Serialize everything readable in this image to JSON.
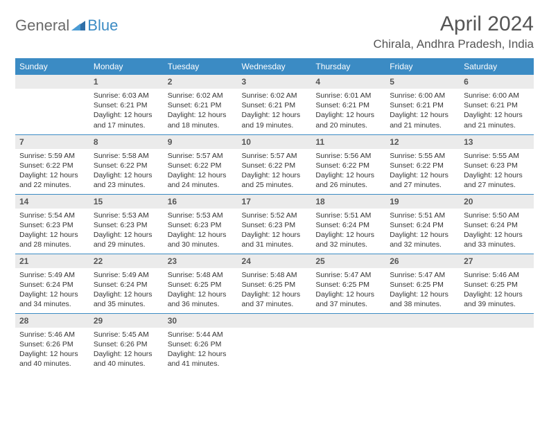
{
  "brand": {
    "text1": "General",
    "text2": "Blue"
  },
  "title": "April 2024",
  "location": "Chirala, Andhra Pradesh, India",
  "colors": {
    "header_bg": "#3b8bc4",
    "header_text": "#ffffff",
    "daynum_bg": "#ebebeb",
    "row_border": "#3b8bc4",
    "title_color": "#555555",
    "body_text": "#333333"
  },
  "typography": {
    "title_fontsize": 30,
    "location_fontsize": 17,
    "weekday_fontsize": 12,
    "daynum_fontsize": 12,
    "body_fontsize": 10.5
  },
  "weekdays": [
    "Sunday",
    "Monday",
    "Tuesday",
    "Wednesday",
    "Thursday",
    "Friday",
    "Saturday"
  ],
  "weeks": [
    [
      null,
      {
        "n": "1",
        "sr": "6:03 AM",
        "ss": "6:21 PM",
        "dl": "12 hours and 17 minutes."
      },
      {
        "n": "2",
        "sr": "6:02 AM",
        "ss": "6:21 PM",
        "dl": "12 hours and 18 minutes."
      },
      {
        "n": "3",
        "sr": "6:02 AM",
        "ss": "6:21 PM",
        "dl": "12 hours and 19 minutes."
      },
      {
        "n": "4",
        "sr": "6:01 AM",
        "ss": "6:21 PM",
        "dl": "12 hours and 20 minutes."
      },
      {
        "n": "5",
        "sr": "6:00 AM",
        "ss": "6:21 PM",
        "dl": "12 hours and 21 minutes."
      },
      {
        "n": "6",
        "sr": "6:00 AM",
        "ss": "6:21 PM",
        "dl": "12 hours and 21 minutes."
      }
    ],
    [
      {
        "n": "7",
        "sr": "5:59 AM",
        "ss": "6:22 PM",
        "dl": "12 hours and 22 minutes."
      },
      {
        "n": "8",
        "sr": "5:58 AM",
        "ss": "6:22 PM",
        "dl": "12 hours and 23 minutes."
      },
      {
        "n": "9",
        "sr": "5:57 AM",
        "ss": "6:22 PM",
        "dl": "12 hours and 24 minutes."
      },
      {
        "n": "10",
        "sr": "5:57 AM",
        "ss": "6:22 PM",
        "dl": "12 hours and 25 minutes."
      },
      {
        "n": "11",
        "sr": "5:56 AM",
        "ss": "6:22 PM",
        "dl": "12 hours and 26 minutes."
      },
      {
        "n": "12",
        "sr": "5:55 AM",
        "ss": "6:22 PM",
        "dl": "12 hours and 27 minutes."
      },
      {
        "n": "13",
        "sr": "5:55 AM",
        "ss": "6:23 PM",
        "dl": "12 hours and 27 minutes."
      }
    ],
    [
      {
        "n": "14",
        "sr": "5:54 AM",
        "ss": "6:23 PM",
        "dl": "12 hours and 28 minutes."
      },
      {
        "n": "15",
        "sr": "5:53 AM",
        "ss": "6:23 PM",
        "dl": "12 hours and 29 minutes."
      },
      {
        "n": "16",
        "sr": "5:53 AM",
        "ss": "6:23 PM",
        "dl": "12 hours and 30 minutes."
      },
      {
        "n": "17",
        "sr": "5:52 AM",
        "ss": "6:23 PM",
        "dl": "12 hours and 31 minutes."
      },
      {
        "n": "18",
        "sr": "5:51 AM",
        "ss": "6:24 PM",
        "dl": "12 hours and 32 minutes."
      },
      {
        "n": "19",
        "sr": "5:51 AM",
        "ss": "6:24 PM",
        "dl": "12 hours and 32 minutes."
      },
      {
        "n": "20",
        "sr": "5:50 AM",
        "ss": "6:24 PM",
        "dl": "12 hours and 33 minutes."
      }
    ],
    [
      {
        "n": "21",
        "sr": "5:49 AM",
        "ss": "6:24 PM",
        "dl": "12 hours and 34 minutes."
      },
      {
        "n": "22",
        "sr": "5:49 AM",
        "ss": "6:24 PM",
        "dl": "12 hours and 35 minutes."
      },
      {
        "n": "23",
        "sr": "5:48 AM",
        "ss": "6:25 PM",
        "dl": "12 hours and 36 minutes."
      },
      {
        "n": "24",
        "sr": "5:48 AM",
        "ss": "6:25 PM",
        "dl": "12 hours and 37 minutes."
      },
      {
        "n": "25",
        "sr": "5:47 AM",
        "ss": "6:25 PM",
        "dl": "12 hours and 37 minutes."
      },
      {
        "n": "26",
        "sr": "5:47 AM",
        "ss": "6:25 PM",
        "dl": "12 hours and 38 minutes."
      },
      {
        "n": "27",
        "sr": "5:46 AM",
        "ss": "6:25 PM",
        "dl": "12 hours and 39 minutes."
      }
    ],
    [
      {
        "n": "28",
        "sr": "5:46 AM",
        "ss": "6:26 PM",
        "dl": "12 hours and 40 minutes."
      },
      {
        "n": "29",
        "sr": "5:45 AM",
        "ss": "6:26 PM",
        "dl": "12 hours and 40 minutes."
      },
      {
        "n": "30",
        "sr": "5:44 AM",
        "ss": "6:26 PM",
        "dl": "12 hours and 41 minutes."
      },
      null,
      null,
      null,
      null
    ]
  ],
  "labels": {
    "sunrise": "Sunrise:",
    "sunset": "Sunset:",
    "daylight": "Daylight:"
  }
}
